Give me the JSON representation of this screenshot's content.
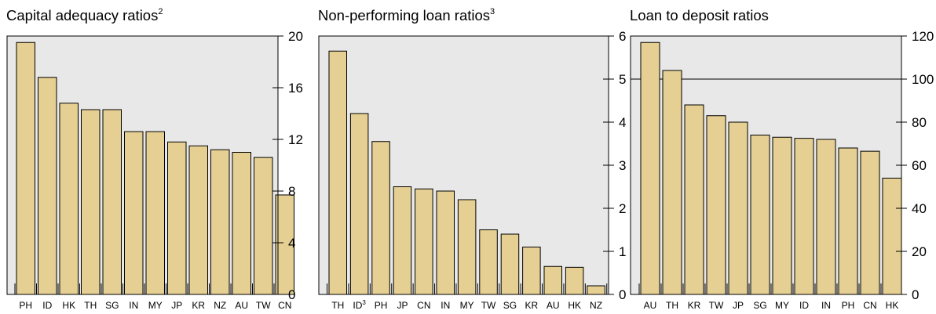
{
  "chart_data": [
    {
      "type": "bar",
      "title": "Capital adequacy ratios",
      "title_note": "2",
      "categories": [
        "PH",
        "ID",
        "HK",
        "TH",
        "SG",
        "IN",
        "MY",
        "JP",
        "KR",
        "NZ",
        "AU",
        "TW",
        "CN"
      ],
      "category_notes": {},
      "values": [
        19.5,
        16.8,
        14.8,
        14.3,
        14.3,
        12.6,
        12.6,
        11.8,
        11.5,
        11.2,
        11.0,
        10.6,
        7.7
      ],
      "ylim": [
        0,
        20
      ],
      "yticks": [
        0,
        4,
        8,
        12,
        16,
        20
      ],
      "y_axis_side": "right",
      "reference_line": null,
      "grid": false,
      "bar_color": "#e5cf92",
      "plot_background": "#e8e8e8"
    },
    {
      "type": "bar",
      "title": "Non-performing loan ratios",
      "title_note": "3",
      "categories": [
        "TH",
        "ID",
        "PH",
        "JP",
        "CN",
        "IN",
        "MY",
        "TW",
        "SG",
        "KR",
        "AU",
        "HK",
        "NZ"
      ],
      "category_notes": {
        "ID": "3"
      },
      "values": [
        5.65,
        4.2,
        3.55,
        2.5,
        2.45,
        2.4,
        2.2,
        1.5,
        1.4,
        1.1,
        0.65,
        0.63,
        0.2
      ],
      "ylim": [
        0,
        6
      ],
      "yticks": [
        0,
        1,
        2,
        3,
        4,
        5,
        6
      ],
      "y_axis_side": "right",
      "reference_line": null,
      "grid": false,
      "bar_color": "#e5cf92",
      "plot_background": "#e8e8e8"
    },
    {
      "type": "bar",
      "title": "Loan to deposit ratios",
      "title_note": "",
      "categories": [
        "AU",
        "TH",
        "KR",
        "TW",
        "JP",
        "SG",
        "MY",
        "ID",
        "IN",
        "PH",
        "CN",
        "HK"
      ],
      "category_notes": {},
      "values": [
        117,
        104,
        88,
        83,
        80,
        74,
        73,
        72.5,
        72,
        68,
        66.5,
        54
      ],
      "ylim": [
        0,
        120
      ],
      "yticks": [
        0,
        20,
        40,
        60,
        80,
        100,
        120
      ],
      "y_axis_side": "right",
      "reference_line": 100,
      "grid": false,
      "bar_color": "#e5cf92",
      "plot_background": "#e8e8e8"
    }
  ]
}
